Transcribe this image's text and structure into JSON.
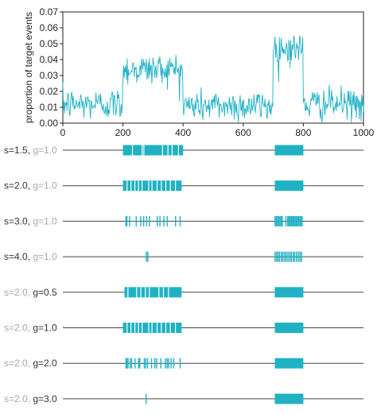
{
  "chart_data": [
    {
      "type": "line",
      "title": "",
      "xlabel": "",
      "ylabel": "proportion of target events",
      "xlim": [
        0,
        1000
      ],
      "ylim": [
        0,
        0.07
      ],
      "x_ticks": [
        "0",
        "200",
        "400",
        "600",
        "800",
        "1000"
      ],
      "y_ticks": [
        "0.00",
        "0.01",
        "0.02",
        "0.03",
        "0.04",
        "0.05",
        "0.06",
        "0.07"
      ],
      "grid": false,
      "legend": "none",
      "series": [
        {
          "color": "#1fb2c4",
          "segments": [
            {
              "x": [
                0,
                200
              ],
              "y": [
                0.012,
                0.012
              ]
            },
            {
              "x": [
                200,
                400
              ],
              "y": [
                0.034,
                0.034
              ]
            },
            {
              "x": [
                400,
                700
              ],
              "y": [
                0.011,
                0.011
              ]
            },
            {
              "x": [
                700,
                800
              ],
              "y": [
                0.047,
                0.047
              ]
            },
            {
              "x": [
                800,
                1000
              ],
              "y": [
                0.012,
                0.012
              ]
            }
          ],
          "noise_sd": 0.005
        }
      ]
    },
    {
      "type": "event-raster",
      "xlim": [
        0,
        1000
      ],
      "color": "#1fb2c4",
      "rows": [
        {
          "label": [
            {
              "text": "s=1.5, ",
              "style": "dark"
            },
            {
              "text": "g=1.0",
              "style": "light"
            }
          ],
          "bursts": [
            {
              "start": 200,
              "end": 400,
              "gaps": [
                230,
                262,
                268,
                330,
                348,
                362,
                383
              ]
            },
            {
              "start": 705,
              "end": 800,
              "gaps": []
            }
          ]
        },
        {
          "label": [
            {
              "text": "s=2.0, ",
              "style": "dark"
            },
            {
              "text": "g=1.0",
              "style": "light"
            }
          ],
          "bursts": [
            {
              "start": 200,
              "end": 395,
              "gaps": [
                212,
                225,
                238,
                250,
                262,
                284,
                295,
                312,
                326,
                341,
                356,
                373
              ]
            },
            {
              "start": 705,
              "end": 800,
              "gaps": []
            }
          ]
        },
        {
          "label": [
            {
              "text": "s=3.0, ",
              "style": "dark"
            },
            {
              "text": "g=1.0",
              "style": "light"
            }
          ],
          "ticks": [
            210,
            213,
            222,
            244,
            259,
            269,
            279,
            288,
            314,
            323,
            336,
            347,
            375,
            390,
            706,
            710,
            714,
            718,
            722,
            726,
            730,
            742,
            748,
            752,
            756,
            760,
            764,
            768,
            772,
            776,
            780,
            784,
            788,
            792,
            796
          ]
        },
        {
          "label": [
            {
              "text": "s=4.0, ",
              "style": "dark"
            },
            {
              "text": "g=1.0",
              "style": "light"
            }
          ],
          "ticks": [
            278,
            283,
            706,
            711,
            716,
            721,
            727,
            732,
            738,
            743,
            749,
            755,
            760,
            766,
            771,
            777,
            783,
            789,
            794
          ]
        },
        {
          "label": [
            {
              "text": "s=2.0, ",
              "style": "light"
            },
            {
              "text": "g=0.5",
              "style": "dark"
            }
          ],
          "bursts": [
            {
              "start": 205,
              "end": 395,
              "gaps": [
                215,
                244,
                258,
                273,
                286,
                318,
                333,
                350
              ]
            },
            {
              "start": 705,
              "end": 800,
              "gaps": []
            }
          ]
        },
        {
          "label": [
            {
              "text": "s=2.0, ",
              "style": "light"
            },
            {
              "text": "g=1.0",
              "style": "dark"
            }
          ],
          "bursts": [
            {
              "start": 200,
              "end": 395,
              "gaps": [
                212,
                225,
                238,
                250,
                262,
                284,
                295,
                312,
                326,
                341,
                356,
                373
              ]
            },
            {
              "start": 705,
              "end": 800,
              "gaps": []
            }
          ]
        },
        {
          "label": [
            {
              "text": "s=2.0, ",
              "style": "light"
            },
            {
              "text": "g=2.0",
              "style": "dark"
            }
          ],
          "ticks": [
            210,
            213,
            217,
            224,
            229,
            240,
            252,
            256,
            271,
            276,
            282,
            295,
            306,
            312,
            326,
            341,
            347,
            352,
            360,
            369,
            390
          ],
          "bursts": [
            {
              "start": 705,
              "end": 800,
              "gaps": []
            }
          ]
        },
        {
          "label": [
            {
              "text": "s=2.0, ",
              "style": "light"
            },
            {
              "text": "g=3.0",
              "style": "dark"
            }
          ],
          "ticks": [
            277
          ],
          "bursts": [
            {
              "start": 705,
              "end": 800,
              "gaps": []
            }
          ]
        }
      ]
    }
  ],
  "colors": {
    "series": "#1fb2c4",
    "label_dark": "#333333",
    "label_light": "#a7a7a7",
    "axis": "#222222",
    "baseline": "#444444"
  }
}
